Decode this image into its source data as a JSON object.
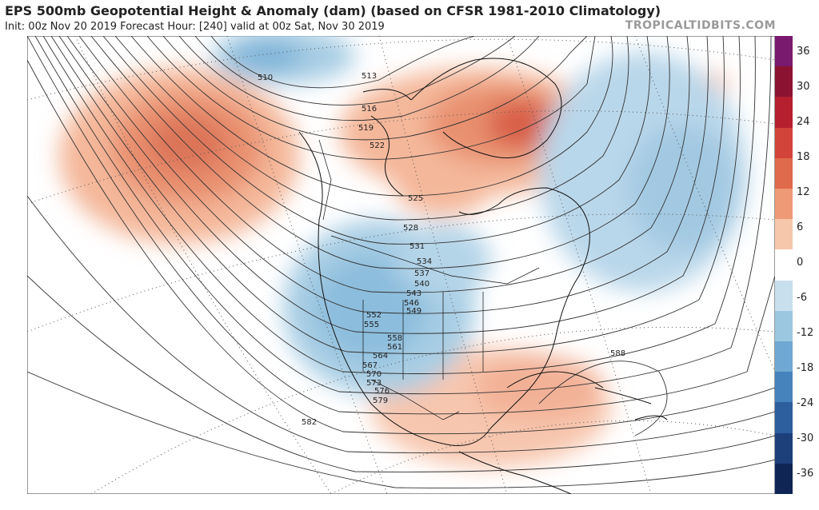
{
  "header": {
    "title": "EPS 500mb Geopotential Height & Anomaly (dam) (based on CFSR 1981-2010 Climatology)",
    "subtitle": "Init: 00z Nov 20 2019   Forecast Hour: [240]   valid at 00z Sat, Nov 30 2019",
    "brand": "TROPICALTIDBITS.COM"
  },
  "colorbar": {
    "ticks": [
      "36",
      "30",
      "24",
      "18",
      "12",
      "6",
      "0",
      "-6",
      "-12",
      "-18",
      "-24",
      "-30",
      "-36"
    ],
    "colors": [
      "#7a1a6e",
      "#8b1230",
      "#b51f2e",
      "#d2443a",
      "#e06a4c",
      "#ee9a77",
      "#f6c7ab",
      "#ffffff",
      "#c8dfee",
      "#9cc7e1",
      "#6fa8d2",
      "#4683bd",
      "#2d5e9e",
      "#1d3f7a",
      "#0f2554"
    ]
  },
  "contour_labels": [
    "510",
    "513",
    "516",
    "519",
    "522",
    "525",
    "528",
    "531",
    "534",
    "537",
    "540",
    "543",
    "546",
    "549",
    "552",
    "555",
    "558",
    "561",
    "564",
    "567",
    "570",
    "573",
    "576",
    "579",
    "582",
    "588"
  ]
}
